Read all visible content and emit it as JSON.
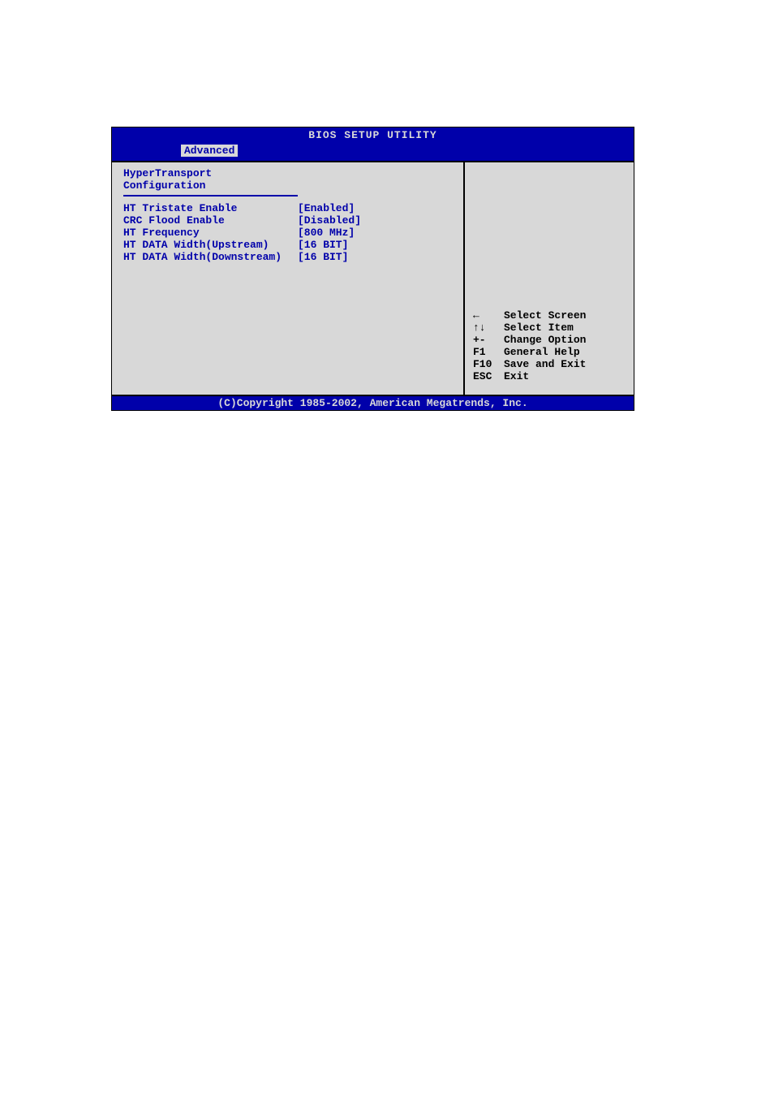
{
  "colors": {
    "bios_blue": "#0000aa",
    "bios_gray": "#d8d8d8",
    "text_black": "#000000"
  },
  "title": "BIOS SETUP UTILITY",
  "tab": "Advanced",
  "section_title": "HyperTransport Configuration",
  "options": [
    {
      "label": "HT Tristate Enable",
      "value": "[Enabled]"
    },
    {
      "label": "CRC Flood Enable",
      "value": "[Disabled]"
    },
    {
      "label": "HT Frequency",
      "value": "[800 MHz]"
    },
    {
      "label": "HT DATA Width(Upstream)",
      "value": "[16 BIT]"
    },
    {
      "label": "HT DATA Width(Downstream)",
      "value": "[16 BIT]"
    }
  ],
  "help": [
    {
      "key": "←",
      "desc": "Select Screen"
    },
    {
      "key": "↑↓",
      "desc": "Select Item"
    },
    {
      "key": "+-",
      "desc": "Change Option"
    },
    {
      "key": "F1",
      "desc": "General Help"
    },
    {
      "key": "F10",
      "desc": "Save and Exit"
    },
    {
      "key": "ESC",
      "desc": "Exit"
    }
  ],
  "footer": "(C)Copyright 1985-2002, American Megatrends, Inc."
}
